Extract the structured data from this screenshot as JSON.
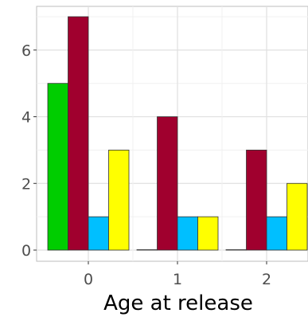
{
  "chart_data": {
    "type": "bar",
    "xlabel": "Age at release",
    "ylabel": "",
    "categories": [
      "0",
      "1",
      "2"
    ],
    "ylim": [
      0,
      7
    ],
    "yticks": [
      0,
      2,
      4,
      6
    ],
    "grid": true,
    "series": [
      {
        "color": "#00cd00",
        "values": [
          5,
          0,
          0
        ]
      },
      {
        "color": "#a0002e",
        "values": [
          7,
          4,
          3
        ]
      },
      {
        "color": "#00bfff",
        "values": [
          1,
          1,
          1
        ]
      },
      {
        "color": "#ffff00",
        "values": [
          3,
          1,
          2
        ]
      }
    ]
  }
}
